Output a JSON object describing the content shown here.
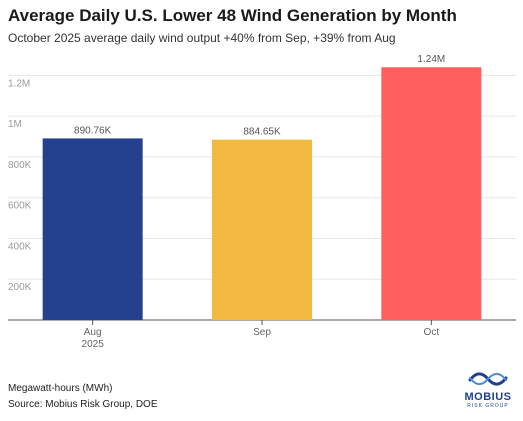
{
  "title": "Average Daily U.S. Lower 48 Wind Generation by Month",
  "subtitle": "October 2025 average daily wind output +40% from Sep, +39% from Aug",
  "footer": {
    "unit": "Megawatt-hours (MWh)",
    "source": "Source: Mobius Risk Group, DOE"
  },
  "logo": {
    "name": "MOBIUS",
    "sub": "RISK GROUP",
    "icon": "mobius-wave-icon",
    "color": "#1f3f8f"
  },
  "chart_data": {
    "type": "bar",
    "categories": [
      "Aug",
      "Sep",
      "Oct"
    ],
    "category_sublabels": [
      "2025",
      "",
      ""
    ],
    "values": [
      890760,
      884650,
      1240000
    ],
    "value_labels": [
      "890.76K",
      "884.65K",
      "1.24M"
    ],
    "colors": [
      "#25408f",
      "#f2b943",
      "#ff5f5f"
    ],
    "ylim": [
      0,
      1300000
    ],
    "yticks": [
      200000,
      400000,
      600000,
      800000,
      1000000,
      1200000
    ],
    "ytick_labels": [
      "200K",
      "400K",
      "600K",
      "800K",
      "1M",
      "1.2M"
    ],
    "grid": true,
    "xlabel": "",
    "ylabel": ""
  }
}
